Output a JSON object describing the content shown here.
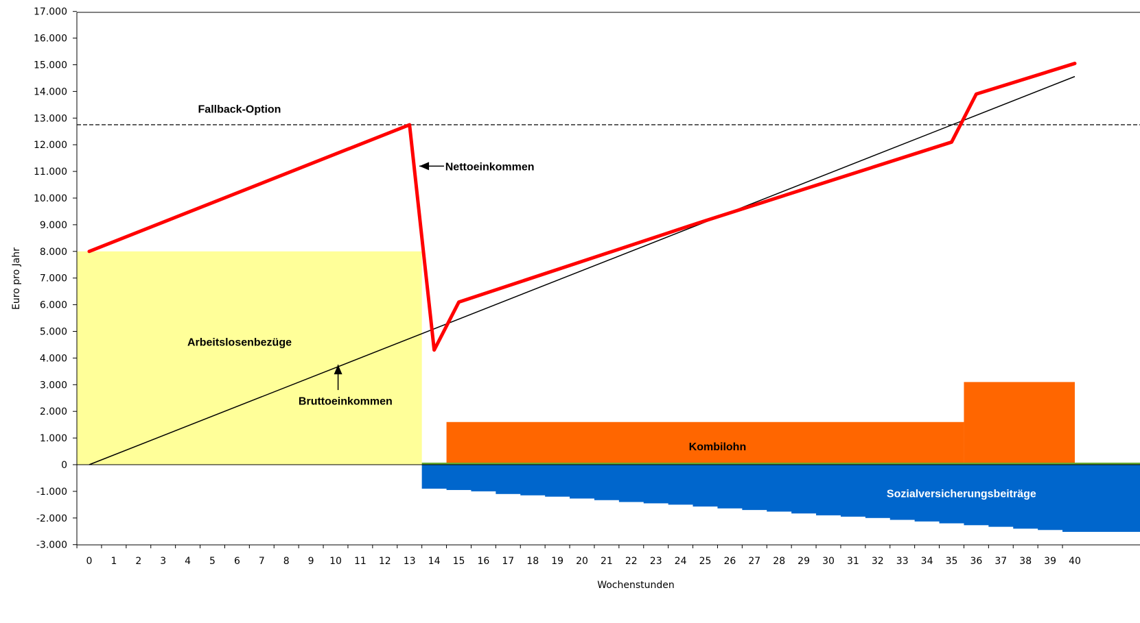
{
  "chart_data": {
    "type": "area",
    "xlabel": "Wochenstunden",
    "ylabel": "Euro pro Jahr",
    "xlim": [
      0,
      40
    ],
    "ylim": [
      -3000,
      17000
    ],
    "x_ticks": [
      0,
      1,
      2,
      3,
      4,
      5,
      6,
      7,
      8,
      9,
      10,
      11,
      12,
      13,
      14,
      15,
      16,
      17,
      18,
      19,
      20,
      21,
      22,
      23,
      24,
      25,
      26,
      27,
      28,
      29,
      30,
      31,
      32,
      33,
      34,
      35,
      36,
      37,
      38,
      39,
      40
    ],
    "x_tick_labels": [
      "0",
      "1",
      "2",
      "3",
      "4",
      "5",
      "6",
      "7",
      "8",
      "9",
      "10",
      "11",
      "12",
      "13",
      "14",
      "15",
      "16",
      "17",
      "18",
      "19",
      "20",
      "21",
      "22",
      "23",
      "24",
      "25",
      "26",
      "27",
      "28",
      "29",
      "30",
      "31",
      "32",
      "33",
      "34",
      "35",
      "36",
      "37",
      "38",
      "39",
      "40"
    ],
    "y_ticks": [
      -3000,
      -2000,
      -1000,
      0,
      1000,
      2000,
      3000,
      4000,
      5000,
      6000,
      7000,
      8000,
      9000,
      10000,
      11000,
      12000,
      13000,
      14000,
      15000,
      16000,
      17000
    ],
    "y_tick_labels": [
      "-3.000",
      "-2.000",
      "-1.000",
      "0",
      "1.000",
      "2.000",
      "3.000",
      "4.000",
      "5.000",
      "6.000",
      "7.000",
      "8.000",
      "9.000",
      "10.000",
      "11.000",
      "12.000",
      "13.000",
      "14.000",
      "15.000",
      "16.000",
      "17.000"
    ],
    "series": [
      {
        "name": "Arbeitslosenbezüge",
        "kind": "area",
        "color": "#FFFF99",
        "x": [
          0,
          13.5
        ],
        "values": [
          8000,
          8000
        ]
      },
      {
        "name": "Kombilohn",
        "kind": "step",
        "color": "#FF6600",
        "x": [
          14.5,
          35.5,
          40
        ],
        "values": [
          1600,
          3100,
          3100
        ]
      },
      {
        "name": "Sozialversicherungsbeiträge",
        "kind": "step",
        "color": "#0066CC",
        "x": [
          13.5,
          14.5,
          15.5,
          16.5,
          17.5,
          18.5,
          19.5,
          20.5,
          21.5,
          22.5,
          23.5,
          24.5,
          25.5,
          26.5,
          27.5,
          28.5,
          29.5,
          30.5,
          31.5,
          32.5,
          33.5,
          34.5,
          35.5,
          36.5,
          37.5,
          38.5,
          39.5
        ],
        "values": [
          -900,
          -950,
          -1000,
          -1100,
          -1150,
          -1200,
          -1270,
          -1330,
          -1400,
          -1450,
          -1500,
          -1570,
          -1640,
          -1700,
          -1760,
          -1830,
          -1900,
          -1950,
          -2000,
          -2070,
          -2130,
          -2200,
          -2270,
          -2330,
          -2400,
          -2450,
          -2520
        ]
      },
      {
        "name": "Nettoeinkommen",
        "kind": "line",
        "color": "#FF0000",
        "x": [
          0,
          13,
          14,
          15,
          25,
          35,
          36,
          40
        ],
        "values": [
          8000,
          12750,
          4300,
          6100,
          9150,
          12100,
          13900,
          15050
        ]
      },
      {
        "name": "Bruttoeinkommen",
        "kind": "line",
        "color": "#000000",
        "x": [
          0,
          40
        ],
        "values": [
          0,
          14560
        ]
      },
      {
        "name": "Fallback-Option",
        "kind": "hline",
        "color": "#000000",
        "value": 12750
      }
    ],
    "annotations": [
      {
        "key": "fallback",
        "text": "Fallback-Option",
        "x": 6.1,
        "y": 13350
      },
      {
        "key": "netto",
        "text": "Nettoeinkommen",
        "x": 14.45,
        "y": 11200
      },
      {
        "key": "brutto",
        "text": "Bruttoeinkommen",
        "x": 10.4,
        "y": 2400
      },
      {
        "key": "arbeitslosen",
        "text": "Arbeitslosenbezüge",
        "x": 6.1,
        "y": 4620
      },
      {
        "key": "kombilohn",
        "text": "Kombilohn",
        "x": 25.5,
        "y": 700
      },
      {
        "key": "sozial",
        "text": "Sozialversicherungsbeiträge",
        "x": 35.4,
        "y": -1070
      }
    ],
    "arrows": [
      {
        "key": "netto-arrow",
        "from": [
          14.4,
          11200
        ],
        "to": [
          13.4,
          11200
        ]
      },
      {
        "key": "brutto-arrow",
        "from": [
          10.1,
          2800
        ],
        "to": [
          10.1,
          3750
        ]
      }
    ],
    "grid": false,
    "legend": "none"
  }
}
